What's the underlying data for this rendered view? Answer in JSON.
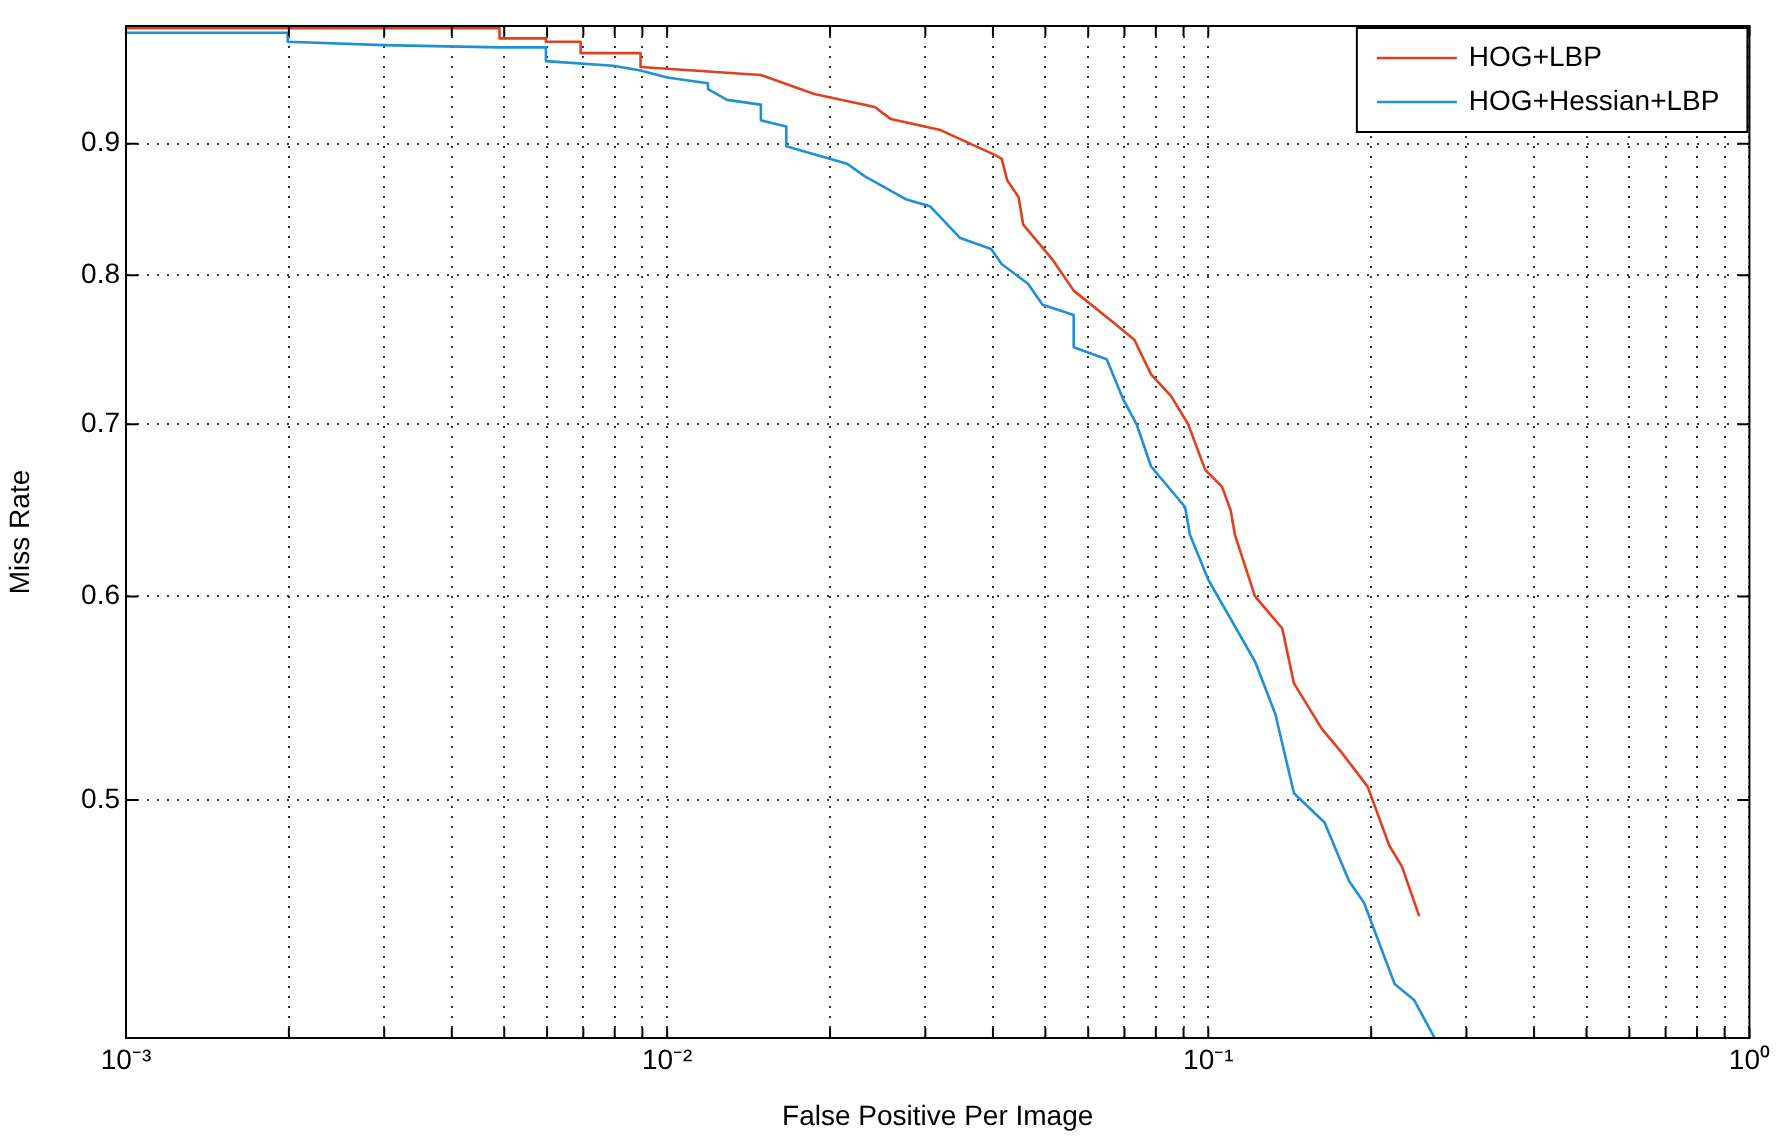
{
  "chart_data": {
    "type": "line",
    "xlabel": "False Positive Per Image",
    "ylabel": "Miss Rate",
    "log": "xy",
    "grid": true,
    "legend": "top right",
    "marker": "none",
    "line_style": "solid",
    "xlim": [
      0.001,
      1
    ],
    "ylim": [
      0.404,
      1
    ],
    "xticks": [
      {
        "value": 0.001,
        "label": "10⁻³"
      },
      {
        "value": 0.002,
        "label": null
      },
      {
        "value": 0.003,
        "label": null
      },
      {
        "value": 0.004,
        "label": null
      },
      {
        "value": 0.005,
        "label": null
      },
      {
        "value": 0.006,
        "label": null
      },
      {
        "value": 0.007,
        "label": null
      },
      {
        "value": 0.008,
        "label": null
      },
      {
        "value": 0.009,
        "label": null
      },
      {
        "value": 0.01,
        "label": "10⁻²"
      },
      {
        "value": 0.02,
        "label": null
      },
      {
        "value": 0.03,
        "label": null
      },
      {
        "value": 0.04,
        "label": null
      },
      {
        "value": 0.05,
        "label": null
      },
      {
        "value": 0.06,
        "label": null
      },
      {
        "value": 0.07,
        "label": null
      },
      {
        "value": 0.08,
        "label": null
      },
      {
        "value": 0.09,
        "label": null
      },
      {
        "value": 0.1,
        "label": "10⁻¹"
      },
      {
        "value": 0.2,
        "label": null
      },
      {
        "value": 0.3,
        "label": null
      },
      {
        "value": 0.4,
        "label": null
      },
      {
        "value": 0.5,
        "label": null
      },
      {
        "value": 0.6,
        "label": null
      },
      {
        "value": 0.7,
        "label": null
      },
      {
        "value": 0.8,
        "label": null
      },
      {
        "value": 0.9,
        "label": null
      },
      {
        "value": 1,
        "label": "10⁰"
      }
    ],
    "yticks": [
      0.5,
      0.6,
      0.7,
      0.8,
      0.9
    ],
    "series": [
      {
        "name": "HOG+LBP",
        "color": "#e0401e",
        "x": [
          0.001,
          0.0049,
          0.0049,
          0.00597,
          0.00597,
          0.00692,
          0.00692,
          0.00893,
          0.00893,
          0.0149,
          0.0187,
          0.0242,
          0.0259,
          0.032,
          0.0403,
          0.0415,
          0.0425,
          0.0446,
          0.0455,
          0.0516,
          0.0564,
          0.0667,
          0.073,
          0.0784,
          0.0853,
          0.0918,
          0.0987,
          0.106,
          0.11,
          0.112,
          0.122,
          0.137,
          0.144,
          0.162,
          0.176,
          0.197,
          0.216,
          0.228,
          0.245
        ],
        "values": [
          0.998,
          0.998,
          0.989,
          0.989,
          0.986,
          0.986,
          0.976,
          0.976,
          0.964,
          0.957,
          0.941,
          0.93,
          0.92,
          0.911,
          0.891,
          0.888,
          0.871,
          0.858,
          0.837,
          0.811,
          0.789,
          0.767,
          0.755,
          0.732,
          0.718,
          0.7,
          0.672,
          0.662,
          0.648,
          0.634,
          0.6,
          0.583,
          0.555,
          0.533,
          0.522,
          0.506,
          0.48,
          0.471,
          0.451
        ]
      },
      {
        "name": "HOG+Hessian+LBP",
        "color": "#1f8fd6",
        "x": [
          0.001,
          0.00199,
          0.00199,
          0.00299,
          0.0049,
          0.00597,
          0.00597,
          0.00795,
          0.00893,
          0.01,
          0.0119,
          0.0119,
          0.0129,
          0.0149,
          0.0149,
          0.0166,
          0.0166,
          0.0215,
          0.0232,
          0.0277,
          0.0306,
          0.0348,
          0.0397,
          0.0415,
          0.0464,
          0.0494,
          0.0564,
          0.0564,
          0.0649,
          0.0696,
          0.0737,
          0.0784,
          0.0906,
          0.0925,
          0.1,
          0.122,
          0.133,
          0.144,
          0.164,
          0.182,
          0.194,
          0.221,
          0.24,
          0.262
        ],
        "values": [
          0.994,
          0.994,
          0.986,
          0.983,
          0.981,
          0.981,
          0.969,
          0.965,
          0.961,
          0.955,
          0.95,
          0.945,
          0.936,
          0.932,
          0.919,
          0.914,
          0.898,
          0.884,
          0.874,
          0.856,
          0.851,
          0.827,
          0.819,
          0.808,
          0.794,
          0.779,
          0.772,
          0.75,
          0.742,
          0.716,
          0.7,
          0.674,
          0.65,
          0.634,
          0.609,
          0.566,
          0.54,
          0.503,
          0.49,
          0.465,
          0.456,
          0.424,
          0.418,
          0.404
        ]
      }
    ]
  }
}
